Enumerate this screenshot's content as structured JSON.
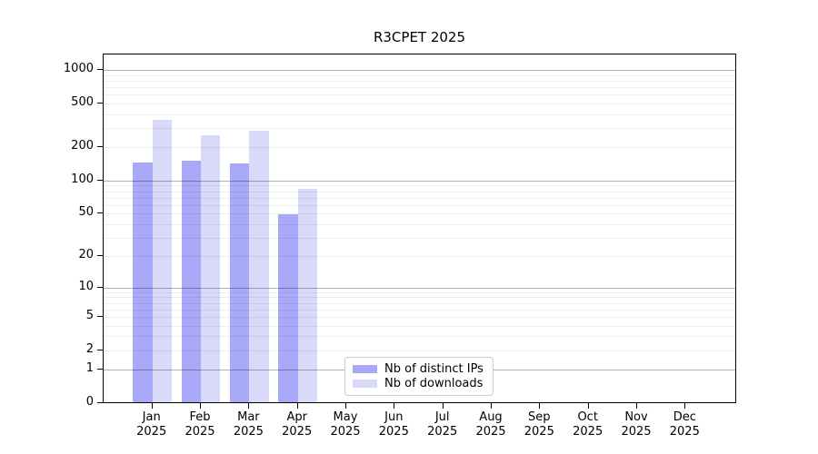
{
  "chart_data": {
    "type": "bar",
    "title": "R3CPET 2025",
    "year_label": "2025",
    "categories": [
      "Jan",
      "Feb",
      "Mar",
      "Apr",
      "May",
      "Jun",
      "Jul",
      "Aug",
      "Sep",
      "Oct",
      "Nov",
      "Dec"
    ],
    "series": [
      {
        "name": "Nb of distinct IPs",
        "color": "#a9a9fa",
        "values": [
          143,
          148,
          141,
          48,
          null,
          null,
          null,
          null,
          null,
          null,
          null,
          null
        ]
      },
      {
        "name": "Nb of downloads",
        "color": "#d9d9fa",
        "values": [
          350,
          253,
          278,
          82,
          null,
          null,
          null,
          null,
          null,
          null,
          null,
          null
        ]
      }
    ],
    "yscale": "log1p",
    "yticks": [
      1000,
      500,
      200,
      100,
      50,
      20,
      10,
      5,
      2,
      1,
      0
    ],
    "ylim": [
      0,
      1380
    ],
    "grid": {
      "major_lines": [
        1,
        10,
        100,
        1000
      ],
      "minor_decades": [
        1,
        10,
        100
      ]
    },
    "legend_position": "lower center",
    "xlabel": "",
    "ylabel": ""
  }
}
